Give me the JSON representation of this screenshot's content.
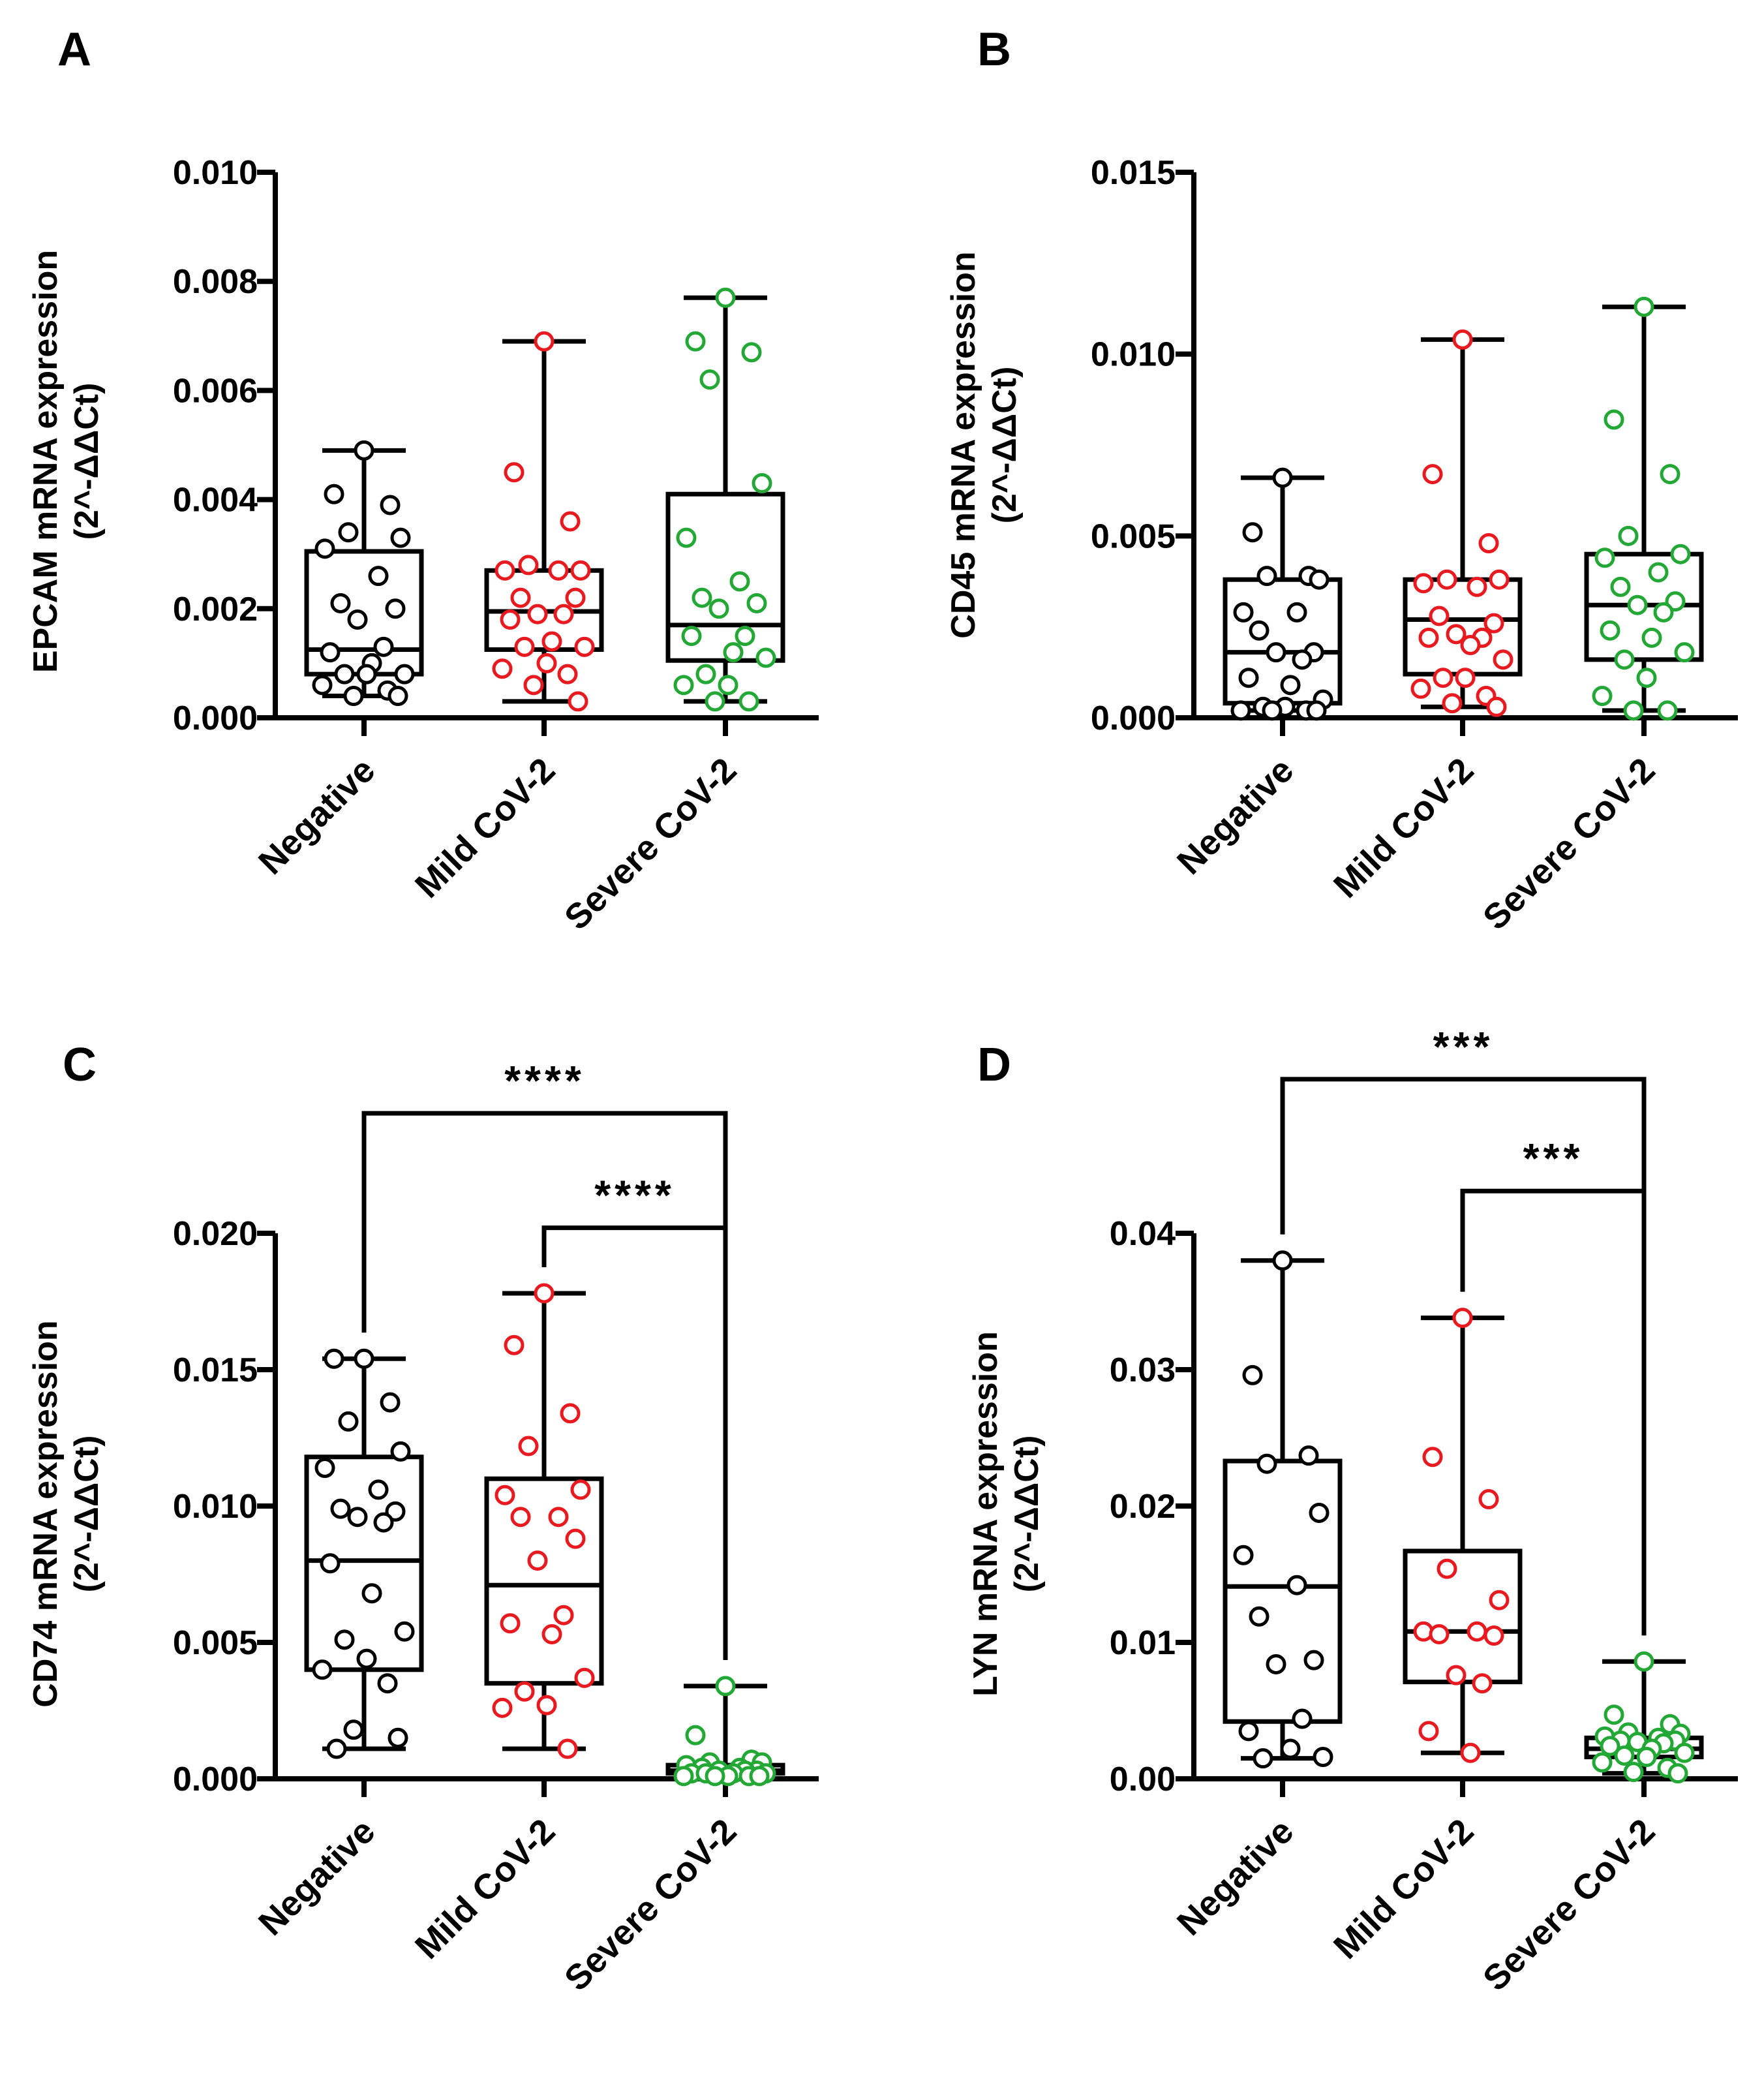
{
  "chart_data": [
    {
      "type": "box",
      "panel": "A",
      "categories": [
        "Negative",
        "Mild CoV-2",
        "Severe CoV-2"
      ],
      "ylabel_line1": "EPCAM mRNA expression",
      "ylabel_line2": "(2^-ΔΔCt)",
      "ylim": [
        0,
        0.01
      ],
      "yticks": [
        "0.000",
        "0.002",
        "0.004",
        "0.006",
        "0.008",
        "0.010"
      ],
      "yticks_values": [
        0,
        0.002,
        0.004,
        0.006,
        0.008,
        0.01
      ],
      "colors": [
        "#000000",
        "#e8191f",
        "#23a836"
      ],
      "boxes": [
        {
          "min": 0.0004,
          "q1": 0.0008,
          "median": 0.00125,
          "q3": 0.00305,
          "max": 0.0049
        },
        {
          "min": 0.0003,
          "q1": 0.00125,
          "median": 0.00195,
          "q3": 0.0027,
          "max": 0.0069
        },
        {
          "min": 0.0003,
          "q1": 0.00105,
          "median": 0.0017,
          "q3": 0.0041,
          "max": 0.0077
        }
      ],
      "points": [
        [
          0.0049,
          0.0041,
          0.0039,
          0.0034,
          0.0033,
          0.0031,
          0.0026,
          0.0021,
          0.002,
          0.0018,
          0.0013,
          0.0012,
          0.001,
          0.0008,
          0.0008,
          0.0008,
          0.0006,
          0.0005,
          0.0004,
          0.0004
        ],
        [
          0.0069,
          0.0045,
          0.0036,
          0.0028,
          0.0027,
          0.0027,
          0.0027,
          0.0022,
          0.0022,
          0.0019,
          0.0019,
          0.0018,
          0.0014,
          0.0013,
          0.0013,
          0.001,
          0.0009,
          0.0008,
          0.0006,
          0.0003
        ],
        [
          0.0077,
          0.0069,
          0.0067,
          0.0062,
          0.0043,
          0.0033,
          0.0025,
          0.0022,
          0.0021,
          0.002,
          0.0015,
          0.0015,
          0.0012,
          0.0011,
          0.0008,
          0.0006,
          0.0006,
          0.0003,
          0.0003
        ]
      ],
      "significance": []
    },
    {
      "type": "box",
      "panel": "B",
      "categories": [
        "Negative",
        "Mild CoV-2",
        "Severe CoV-2"
      ],
      "ylabel_line1": "CD45 mRNA expression",
      "ylabel_line2": "(2^-ΔΔCt)",
      "ylim": [
        0,
        0.015
      ],
      "yticks": [
        "0.000",
        "0.005",
        "0.010",
        "0.015"
      ],
      "yticks_values": [
        0,
        0.005,
        0.01,
        0.015
      ],
      "colors": [
        "#000000",
        "#e8191f",
        "#23a836"
      ],
      "boxes": [
        {
          "min": 0.0002,
          "q1": 0.0004,
          "median": 0.0018,
          "q3": 0.0038,
          "max": 0.0066
        },
        {
          "min": 0.0003,
          "q1": 0.0012,
          "median": 0.0027,
          "q3": 0.0038,
          "max": 0.0104
        },
        {
          "min": 0.0002,
          "q1": 0.0016,
          "median": 0.0031,
          "q3": 0.0045,
          "max": 0.0113
        }
      ],
      "points": [
        [
          0.0066,
          0.0051,
          0.0039,
          0.0039,
          0.0038,
          0.0029,
          0.0029,
          0.0024,
          0.0018,
          0.0018,
          0.0016,
          0.0011,
          0.0009,
          0.0005,
          0.0003,
          0.0003,
          0.0002,
          0.0002,
          0.0002,
          0.0002
        ],
        [
          0.0104,
          0.0067,
          0.0048,
          0.0038,
          0.0038,
          0.0037,
          0.0036,
          0.0028,
          0.0026,
          0.0023,
          0.0022,
          0.0022,
          0.002,
          0.0016,
          0.0011,
          0.0011,
          0.0008,
          0.0006,
          0.0004,
          0.0003
        ],
        [
          0.0113,
          0.0082,
          0.0067,
          0.005,
          0.0045,
          0.0044,
          0.004,
          0.0036,
          0.0032,
          0.0031,
          0.0029,
          0.0024,
          0.0022,
          0.0018,
          0.0016,
          0.0011,
          0.0006,
          0.0002,
          0.0002
        ]
      ],
      "significance": []
    },
    {
      "type": "box",
      "panel": "C",
      "categories": [
        "Negative",
        "Mild CoV-2",
        "Severe CoV-2"
      ],
      "ylabel_line1": "CD74 mRNA expression",
      "ylabel_line2": "(2^-ΔΔCt)",
      "ylim": [
        0,
        0.02
      ],
      "yticks": [
        "0.000",
        "0.005",
        "0.010",
        "0.015",
        "0.020"
      ],
      "yticks_values": [
        0,
        0.005,
        0.01,
        0.015,
        0.02
      ],
      "colors": [
        "#000000",
        "#e8191f",
        "#23a836"
      ],
      "boxes": [
        {
          "min": 0.0011,
          "q1": 0.004,
          "median": 0.008,
          "q3": 0.0118,
          "max": 0.0154
        },
        {
          "min": 0.0011,
          "q1": 0.0035,
          "median": 0.0071,
          "q3": 0.011,
          "max": 0.0178
        },
        {
          "min": 0.0001,
          "q1": 0.0002,
          "median": 0.0003,
          "q3": 0.0005,
          "max": 0.0034
        }
      ],
      "points": [
        [
          0.0154,
          0.0154,
          0.0138,
          0.0131,
          0.012,
          0.0114,
          0.0106,
          0.0099,
          0.0098,
          0.0096,
          0.0094,
          0.0079,
          0.0068,
          0.0054,
          0.0051,
          0.0044,
          0.004,
          0.0035,
          0.0018,
          0.0015,
          0.0011
        ],
        [
          0.0178,
          0.0159,
          0.0134,
          0.0122,
          0.0106,
          0.0104,
          0.0096,
          0.0096,
          0.0088,
          0.008,
          0.006,
          0.0057,
          0.0053,
          0.0037,
          0.0032,
          0.0027,
          0.0026,
          0.0011
        ],
        [
          0.0034,
          0.0016,
          0.0007,
          0.0006,
          0.0006,
          0.0005,
          0.0004,
          0.0004,
          0.0003,
          0.0003,
          0.0003,
          0.0002,
          0.0002,
          0.0002,
          0.0002,
          0.0001,
          0.0001,
          0.0001,
          0.0001,
          0.0001
        ]
      ],
      "significance": [
        {
          "from": 0,
          "to": 2,
          "label": "****",
          "level": 0.0244
        },
        {
          "from": 1,
          "to": 2,
          "label": "****",
          "level": 0.0202
        }
      ]
    },
    {
      "type": "box",
      "panel": "D",
      "categories": [
        "Negative",
        "Mild CoV-2",
        "Severe CoV-2"
      ],
      "ylabel_line1": "LYN mRNA expression",
      "ylabel_line2": "(2^-ΔΔCt)",
      "ylim": [
        0,
        0.04
      ],
      "yticks": [
        "0.00",
        "0.01",
        "0.02",
        "0.03",
        "0.04"
      ],
      "yticks_values": [
        0,
        0.01,
        0.02,
        0.03,
        0.04
      ],
      "colors": [
        "#000000",
        "#e8191f",
        "#23a836"
      ],
      "boxes": [
        {
          "min": 0.0015,
          "q1": 0.0042,
          "median": 0.0141,
          "q3": 0.0233,
          "max": 0.038
        },
        {
          "min": 0.0019,
          "q1": 0.0071,
          "median": 0.0108,
          "q3": 0.0167,
          "max": 0.0338
        },
        {
          "min": 0.0004,
          "q1": 0.0016,
          "median": 0.0022,
          "q3": 0.003,
          "max": 0.0086
        }
      ],
      "points": [
        [
          0.038,
          0.0296,
          0.0237,
          0.0231,
          0.0195,
          0.0164,
          0.0142,
          0.0119,
          0.0087,
          0.0084,
          0.0044,
          0.0035,
          0.0022,
          0.0016,
          0.0015
        ],
        [
          0.0338,
          0.0236,
          0.0205,
          0.0154,
          0.0131,
          0.0108,
          0.0108,
          0.0106,
          0.0105,
          0.0076,
          0.007,
          0.0035,
          0.0019
        ],
        [
          0.0086,
          0.0047,
          0.004,
          0.0034,
          0.0033,
          0.0031,
          0.003,
          0.0028,
          0.0028,
          0.0027,
          0.0026,
          0.0024,
          0.0022,
          0.0019,
          0.0017,
          0.0016,
          0.0012,
          0.0008,
          0.0005,
          0.0004
        ]
      ],
      "significance": [
        {
          "from": 0,
          "to": 2,
          "label": "***",
          "level": 0.0513
        },
        {
          "from": 1,
          "to": 2,
          "label": "***",
          "level": 0.0431
        }
      ]
    }
  ]
}
